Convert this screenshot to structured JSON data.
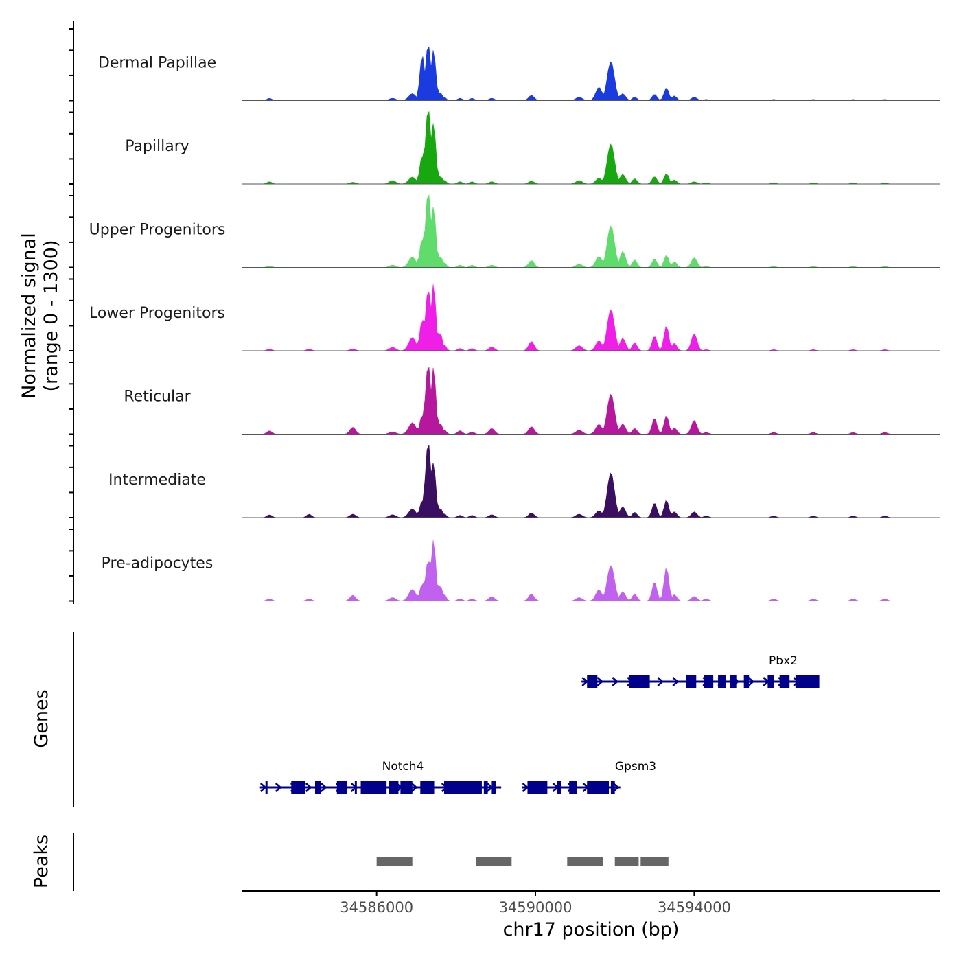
{
  "chart_data": {
    "type": "area",
    "y_axis_title_line1": "Normalized signal",
    "y_axis_title_line2": "(range 0 - 1300)",
    "y_range": [
      0,
      1300
    ],
    "x_axis_title": "chr17 position (bp)",
    "x_range": [
      34582600,
      34600200
    ],
    "x_ticks": [
      {
        "value": 34586000,
        "label": "34586000"
      },
      {
        "value": 34590000,
        "label": "34590000"
      },
      {
        "value": 34594000,
        "label": "34594000"
      }
    ],
    "peak_centers": [
      34583300,
      34584300,
      34585400,
      34586400,
      34586900,
      34587150,
      34587300,
      34587430,
      34587600,
      34587700,
      34588100,
      34588400,
      34588900,
      34589900,
      34591100,
      34591600,
      34591900,
      34592200,
      34592500,
      34593000,
      34593300,
      34593500,
      34594000,
      34594300,
      34596000,
      34597000,
      34598000,
      34598800
    ],
    "peak_widths": [
      60,
      60,
      70,
      80,
      90,
      60,
      70,
      60,
      50,
      50,
      60,
      60,
      70,
      70,
      80,
      80,
      90,
      70,
      60,
      60,
      60,
      60,
      70,
      60,
      60,
      60,
      60,
      60
    ],
    "series": [
      {
        "name": "Dermal Papillae",
        "color": "#1a3be0",
        "values": [
          40,
          0,
          0,
          40,
          120,
          780,
          960,
          870,
          140,
          60,
          40,
          40,
          40,
          90,
          60,
          230,
          680,
          120,
          60,
          110,
          220,
          80,
          60,
          20,
          20,
          20,
          20,
          20
        ]
      },
      {
        "name": "Papillary",
        "color": "#17a80f",
        "values": [
          40,
          0,
          30,
          60,
          120,
          500,
          1300,
          1050,
          140,
          70,
          40,
          40,
          40,
          50,
          60,
          100,
          700,
          170,
          90,
          130,
          180,
          70,
          40,
          20,
          20,
          20,
          20,
          20
        ]
      },
      {
        "name": "Upper Progenitors",
        "color": "#5fdc6b",
        "values": [
          30,
          0,
          0,
          40,
          180,
          500,
          1300,
          1050,
          200,
          90,
          40,
          40,
          40,
          120,
          60,
          190,
          730,
          280,
          130,
          150,
          210,
          100,
          170,
          20,
          20,
          20,
          20,
          20
        ]
      },
      {
        "name": "Lower Progenitors",
        "color": "#ef1fe8",
        "values": [
          30,
          30,
          30,
          60,
          230,
          540,
          1050,
          1150,
          320,
          110,
          40,
          40,
          70,
          160,
          90,
          170,
          720,
          220,
          140,
          260,
          430,
          130,
          300,
          20,
          20,
          20,
          20,
          20
        ]
      },
      {
        "name": "Reticular",
        "color": "#b6189d",
        "values": [
          60,
          0,
          120,
          40,
          200,
          330,
          1200,
          1150,
          200,
          80,
          60,
          40,
          100,
          130,
          70,
          170,
          700,
          180,
          100,
          280,
          320,
          110,
          240,
          30,
          30,
          30,
          30,
          30
        ]
      },
      {
        "name": "Intermediate",
        "color": "#3a0f61",
        "values": [
          50,
          60,
          60,
          50,
          150,
          300,
          1300,
          950,
          170,
          70,
          40,
          40,
          50,
          80,
          60,
          120,
          780,
          190,
          90,
          260,
          300,
          100,
          100,
          30,
          30,
          30,
          30,
          30
        ]
      },
      {
        "name": "Pre-adipocytes",
        "color": "#c061f0",
        "values": [
          40,
          40,
          100,
          60,
          200,
          300,
          700,
          1050,
          280,
          120,
          40,
          40,
          80,
          120,
          60,
          190,
          620,
          160,
          120,
          330,
          580,
          110,
          80,
          40,
          40,
          40,
          40,
          40
        ]
      }
    ],
    "genes_title": "Genes",
    "genes": [
      {
        "name": "Pbx2",
        "start": 34591300,
        "end": 34596800,
        "exons": [
          [
            34591300,
            34591560
          ],
          [
            34592350,
            34592880
          ],
          [
            34593800,
            34594050
          ],
          [
            34594250,
            34594480
          ],
          [
            34594600,
            34594800
          ],
          [
            34594900,
            34595060
          ],
          [
            34595250,
            34595380
          ],
          [
            34595850,
            34596000
          ],
          [
            34596150,
            34596400
          ],
          [
            34596550,
            34597150
          ]
        ]
      },
      {
        "name": "Notch4",
        "start": 34583200,
        "end": 34589000,
        "exons": [
          [
            34583200,
            34583250
          ],
          [
            34583850,
            34584200
          ],
          [
            34584450,
            34584600
          ],
          [
            34585000,
            34585250
          ],
          [
            34585450,
            34585500
          ],
          [
            34585600,
            34586250
          ],
          [
            34586300,
            34586550
          ],
          [
            34586600,
            34586900
          ],
          [
            34587100,
            34587450
          ],
          [
            34587700,
            34588650
          ],
          [
            34588700,
            34588800
          ],
          [
            34588900,
            34589000
          ]
        ]
      },
      {
        "name": "Gpsm3",
        "start": 34589800,
        "end": 34592000,
        "exons": [
          [
            34589800,
            34590300
          ],
          [
            34590550,
            34590650
          ],
          [
            34590850,
            34591050
          ],
          [
            34591300,
            34591850
          ],
          [
            34591900,
            34592000
          ]
        ]
      }
    ],
    "peaks_title": "Peaks",
    "peaks": [
      [
        34586000,
        34586900
      ],
      [
        34588500,
        34589400
      ],
      [
        34590800,
        34591700
      ],
      [
        34592000,
        34592600
      ],
      [
        34592650,
        34593350
      ]
    ]
  }
}
